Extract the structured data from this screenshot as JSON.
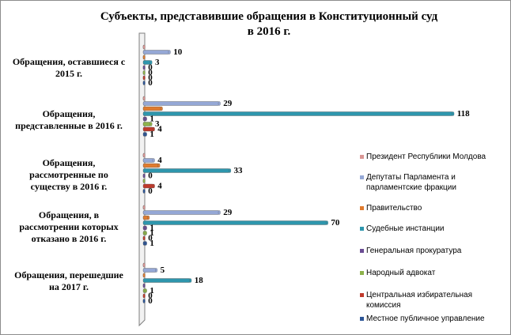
{
  "title_lines": [
    "Субъекты,  представившие обращения в Конституционный суд",
    "в 2016 г."
  ],
  "chart_data": {
    "type": "bar",
    "orientation": "horizontal",
    "style": "3d-cylinder",
    "title": "Субъекты,  представившие обращения в Конституционный суд в 2016 г.",
    "categories": [
      [
        "Обращения,  оставшиеся  с",
        "2015 г."
      ],
      [
        "Обращения,",
        "представленные   в 2016 г."
      ],
      [
        "Обращения,",
        "рассмотренные  по",
        "существу в 2016 г."
      ],
      [
        "Обращения,  в",
        "рассмотрении  которых",
        "отказано  в 2016 г."
      ],
      [
        "Обращения,   перешедшие",
        "на  2017 г."
      ]
    ],
    "series": [
      {
        "name": "Президент  Республики Молдова",
        "color": "#d99694",
        "values": [
          0,
          0,
          0,
          0,
          0
        ]
      },
      {
        "name": "Депутаты Парламента и парламентские фракции",
        "color": "#95a8d6",
        "values": [
          10,
          29,
          4,
          29,
          5
        ]
      },
      {
        "name": "Правительство",
        "color": "#e07b2e",
        "values": [
          0,
          7,
          6,
          2,
          0
        ]
      },
      {
        "name": "Судебные инстанции",
        "color": "#2e96ad",
        "values": [
          3,
          118,
          33,
          70,
          18
        ]
      },
      {
        "name": "Генеральная прокуратура",
        "color": "#6a4c93",
        "values": [
          0,
          1,
          0,
          1,
          0
        ]
      },
      {
        "name": "Народный адвокат",
        "color": "#8db24a",
        "values": [
          0,
          3,
          0,
          1,
          1
        ]
      },
      {
        "name": "Центральная избирательная комиссия",
        "color": "#c0392b",
        "values": [
          0,
          4,
          4,
          0,
          0
        ]
      },
      {
        "name": "Местное публичное управление",
        "color": "#2c5596",
        "values": [
          0,
          1,
          0,
          1,
          0
        ]
      }
    ],
    "data_labels": [
      [
        "",
        "10",
        "",
        "3",
        "0",
        "0",
        "0",
        "0"
      ],
      [
        "",
        "29",
        "",
        "118",
        "1",
        "3",
        "4",
        "1"
      ],
      [
        "",
        "4",
        "",
        "33",
        "0",
        "",
        "4",
        "0"
      ],
      [
        "",
        "29",
        "",
        "70",
        "1",
        "1",
        "0",
        "1"
      ],
      [
        "",
        "5",
        "",
        "18",
        "",
        "1",
        "0",
        "0"
      ]
    ],
    "xlim": [
      0,
      120
    ],
    "grid": false,
    "legend_position": "right"
  }
}
